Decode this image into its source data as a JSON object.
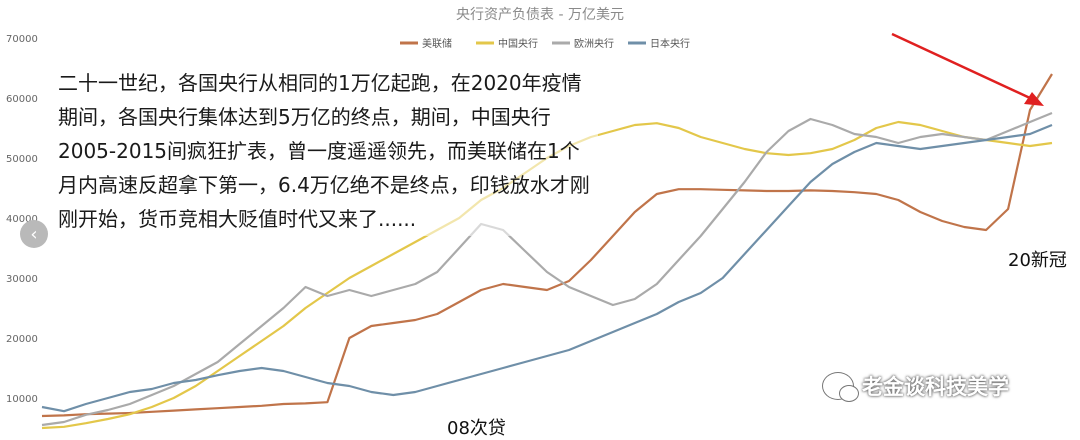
{
  "chart_data": {
    "type": "line",
    "title": "央行资产负债表 - 万亿美元",
    "xlabel": "",
    "ylabel": "",
    "ylim": [
      5000,
      70000
    ],
    "yticks": [
      10000,
      20000,
      30000,
      40000,
      50000,
      60000,
      70000
    ],
    "grid": false,
    "legend": "top",
    "series": [
      {
        "name": "美联储",
        "color": "#c0744a",
        "values": [
          7000,
          7100,
          7300,
          7400,
          7500,
          7700,
          7900,
          8100,
          8300,
          8500,
          8700,
          9000,
          9100,
          9300,
          20000,
          22000,
          22500,
          23000,
          24000,
          26000,
          28000,
          29000,
          28500,
          28000,
          29500,
          33000,
          37000,
          41000,
          44000,
          44800,
          44800,
          44700,
          44600,
          44500,
          44500,
          44600,
          44500,
          44300,
          44000,
          43000,
          41000,
          39500,
          38500,
          38000,
          41500,
          58000,
          64000
        ]
      },
      {
        "name": "中国央行",
        "color": "#e3c74a",
        "values": [
          5000,
          5200,
          5800,
          6500,
          7300,
          8500,
          10000,
          12000,
          14500,
          17000,
          19500,
          22000,
          25000,
          27500,
          30000,
          32000,
          34000,
          36000,
          38000,
          40000,
          43000,
          45000,
          47500,
          50000,
          52000,
          53500,
          54500,
          55500,
          55800,
          55000,
          53500,
          52500,
          51500,
          50800,
          50500,
          50800,
          51500,
          53000,
          55000,
          56000,
          55500,
          54500,
          53500,
          53000,
          52500,
          52000,
          52500
        ]
      },
      {
        "name": "欧洲央行",
        "color": "#aaaaaa",
        "values": [
          5500,
          6000,
          7200,
          8000,
          9000,
          10500,
          12000,
          14000,
          16000,
          19000,
          22000,
          25000,
          28500,
          27000,
          28000,
          27000,
          28000,
          29000,
          31000,
          35000,
          39000,
          38000,
          34500,
          31000,
          28500,
          27000,
          25500,
          26500,
          29000,
          33000,
          37000,
          41500,
          46000,
          51000,
          54500,
          56500,
          55500,
          54000,
          53500,
          52500,
          53500,
          54000,
          53500,
          53000,
          54500,
          56000,
          57500
        ]
      },
      {
        "name": "日本央行",
        "color": "#6f8fa8",
        "values": [
          8500,
          7800,
          9000,
          10000,
          11000,
          11500,
          12500,
          13000,
          13800,
          14500,
          15000,
          14500,
          13500,
          12500,
          12000,
          11000,
          10500,
          11000,
          12000,
          13000,
          14000,
          15000,
          16000,
          17000,
          18000,
          19500,
          21000,
          22500,
          24000,
          26000,
          27500,
          30000,
          34000,
          38000,
          42000,
          46000,
          49000,
          51000,
          52500,
          52000,
          51500,
          52000,
          52500,
          53000,
          53500,
          54000,
          55500
        ]
      }
    ]
  },
  "overlay_text": "二十一世纪，各国央行从相同的1万亿起跑，在2020年疫情期间，各国央行集体达到5万亿的终点，期间，中国央行2005-2015间疯狂扩表，曾一度遥遥领先，而美联储在1个月内高速反超拿下第一，6.4万亿绝不是终点，印钱放水才刚刚开始，货币竞相大贬值时代又来了......",
  "annotations": {
    "covid": "20新冠",
    "crisis_2008": "08次贷"
  },
  "watermark_text": "老金谈科技美学",
  "arrow_color": "#e02020",
  "nav_button_icon": "chevron-left-icon"
}
